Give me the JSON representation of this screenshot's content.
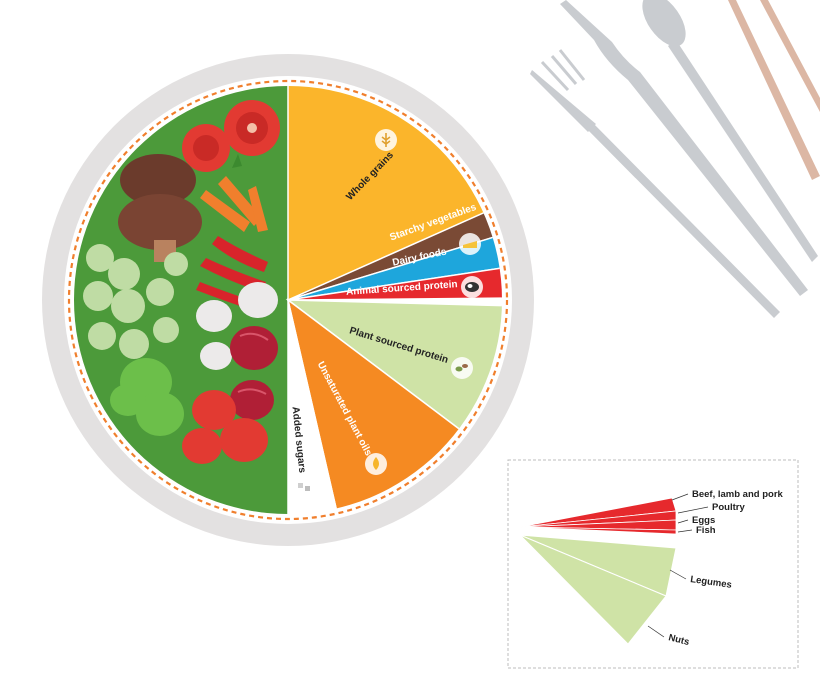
{
  "plate": {
    "segments": [
      {
        "key": "whole_grains",
        "label": "Whole grains",
        "color": "#fbb52b",
        "icon": "wheat-icon"
      },
      {
        "key": "starchy_vegetables",
        "label": "Starchy vegetables",
        "color": "#7a4a35",
        "icon": ""
      },
      {
        "key": "dairy_foods",
        "label": "Dairy foods",
        "color": "#1ea6dc",
        "icon": "cheese-icon"
      },
      {
        "key": "animal_sourced_protein",
        "label": "Animal sourced protein",
        "color": "#e6292d",
        "icon": "cow-icon"
      },
      {
        "key": "plant_sourced_protein",
        "label": "Plant sourced protein",
        "color": "#cfe3a6",
        "icon": "beans-icon"
      },
      {
        "key": "unsaturated_plant_oils",
        "label": "Unsaturated plant oils",
        "color": "#f58a22",
        "icon": "oil-drop-icon"
      },
      {
        "key": "added_sugars",
        "label": "Added sugars",
        "color": "#ffffff",
        "icon": "sugar-cube-icon"
      }
    ],
    "vegetables_fruits_color": "#4c9a3a"
  },
  "detail": {
    "red_labels": [
      "Beef, lamb and pork",
      "Poultry",
      "Eggs",
      "Fish"
    ],
    "green_labels": [
      "Legumes",
      "Nuts"
    ],
    "red_color": "#e6292d",
    "green_color": "#cfe3a6"
  },
  "cutlery": [
    "fork-icon",
    "knife-icon",
    "spoon-icon",
    "chopsticks-icon"
  ]
}
